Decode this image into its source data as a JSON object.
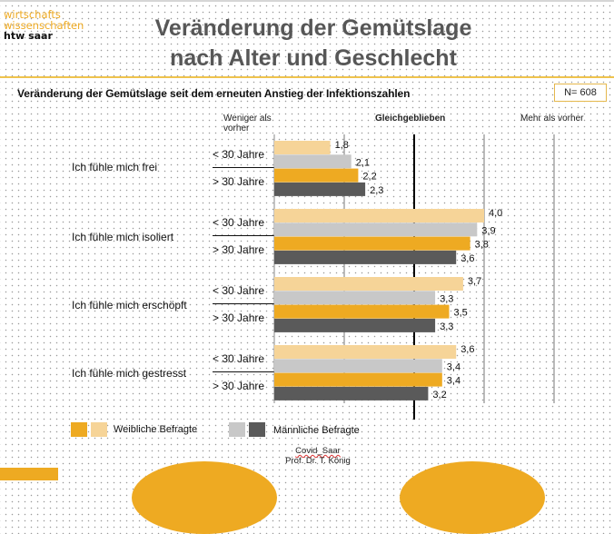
{
  "logo": {
    "line1": "wirtschafts",
    "line2": "wissenschaften",
    "line3": "htw saar"
  },
  "title": {
    "line1": "Veränderung der Gemütslage",
    "line2": "nach Alter und Geschlecht"
  },
  "subtitle": "Veränderung der Gemütslage seit dem erneuten Anstieg der Infektionszahlen",
  "sample_size": "N= 608",
  "footer": {
    "line1": "Covid_Saar",
    "line2": "Prof. Dr. T. König"
  },
  "colors": {
    "accent": "#eeaa22",
    "weiblich_jung": "#f6d498",
    "maennlich_jung": "#c8c8c8",
    "weiblich_alt": "#eeaa22",
    "maennlich_alt": "#5a5a5a"
  },
  "chart_data": {
    "type": "bar",
    "orientation": "horizontal",
    "title": "Veränderung der Gemütslage seit dem erneuten Anstieg der Infektionszahlen",
    "scale_labels": [
      {
        "value": 1.5,
        "label": "Weniger als vorher"
      },
      {
        "value": 3,
        "label": "Gleichgeblieben"
      },
      {
        "value": 5,
        "label": "Mehr als vorher"
      }
    ],
    "xlim": [
      1,
      5
    ],
    "reference_line": 3,
    "gridlines": [
      2,
      3,
      4,
      5
    ],
    "categories": [
      "Ich fühle mich frei",
      "Ich fühle mich isoliert",
      "Ich fühle mich erschöpft",
      "Ich fühle mich gestresst"
    ],
    "age_groups": [
      "< 30 Jahre",
      "> 30 Jahre"
    ],
    "series": [
      {
        "name": "Weiblich < 30 Jahre",
        "gender": "Weibliche Befragte",
        "age": "< 30 Jahre",
        "color": "#f6d498",
        "values": [
          1.8,
          4.0,
          3.7,
          3.6
        ],
        "labels": [
          "1,8",
          "4,0",
          "3,7",
          "3,6"
        ]
      },
      {
        "name": "Männlich < 30 Jahre",
        "gender": "Männliche Befragte",
        "age": "< 30 Jahre",
        "color": "#c8c8c8",
        "values": [
          2.1,
          3.9,
          3.3,
          3.4
        ],
        "labels": [
          "2,1",
          "3,9",
          "3,3",
          "3,4"
        ]
      },
      {
        "name": "Weiblich > 30 Jahre",
        "gender": "Weibliche Befragte",
        "age": "> 30 Jahre",
        "color": "#eeaa22",
        "values": [
          2.2,
          3.8,
          3.5,
          3.4
        ],
        "labels": [
          "2,2",
          "3,8",
          "3,5",
          "3,4"
        ]
      },
      {
        "name": "Männlich > 30 Jahre",
        "gender": "Männliche Befragte",
        "age": "> 30 Jahre",
        "color": "#5a5a5a",
        "values": [
          2.3,
          3.6,
          3.3,
          3.2
        ],
        "labels": [
          "2,3",
          "3,6",
          "3,3",
          "3,2"
        ]
      }
    ],
    "legend": {
      "position": "bottom-left",
      "entries": [
        {
          "label": "Weibliche Befragte",
          "colors": [
            "#eeaa22",
            "#f6d498"
          ]
        },
        {
          "label": "Männliche Befragte",
          "colors": [
            "#c8c8c8",
            "#5a5a5a"
          ]
        }
      ]
    }
  }
}
